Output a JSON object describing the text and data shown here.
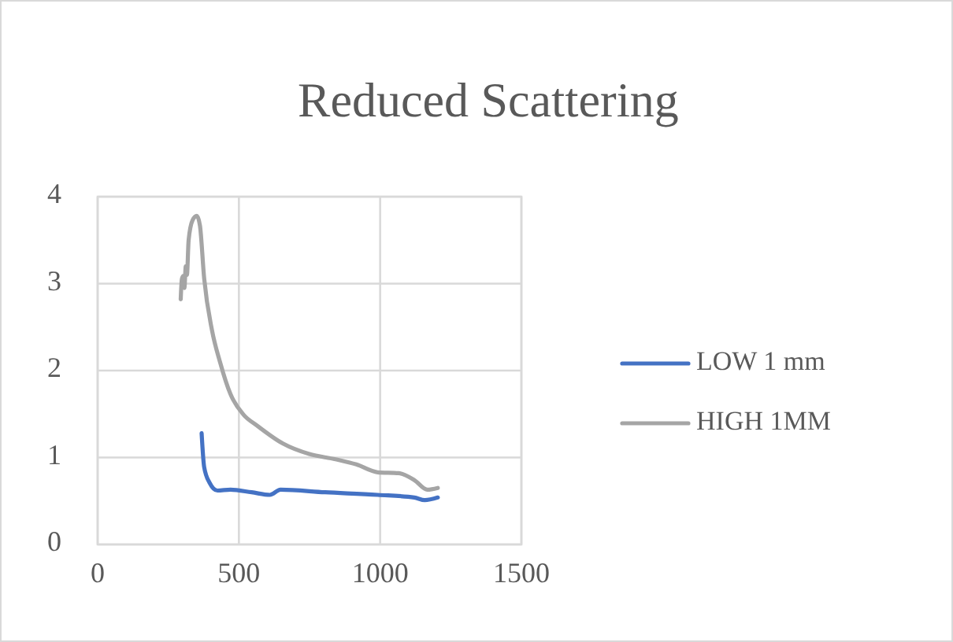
{
  "chart_data": {
    "type": "line",
    "title": "Reduced Scattering",
    "xlim": [
      0,
      1500
    ],
    "xticks": [
      0,
      500,
      1000,
      1500
    ],
    "ylim": [
      0,
      4
    ],
    "yticks": [
      0,
      1,
      2,
      3,
      4
    ],
    "grid": true,
    "legend": "right",
    "marker": "none",
    "line_style": "solid",
    "series": [
      {
        "name": "LOW 1 mm",
        "color": "#4472c4",
        "x": [
          368,
          377,
          396,
          424,
          470,
          545,
          610,
          647,
          805,
          991,
          1121,
          1158,
          1204
        ],
        "values": [
          1.28,
          0.89,
          0.71,
          0.62,
          0.63,
          0.6,
          0.57,
          0.63,
          0.6,
          0.57,
          0.54,
          0.51,
          0.54
        ]
      },
      {
        "name": "HIGH 1MM",
        "color": "#a5a5a5",
        "x": [
          294,
          298,
          303,
          307,
          312,
          316,
          322,
          336,
          351,
          362,
          377,
          405,
          433,
          470,
          517,
          563,
          656,
          749,
          842,
          916,
          991,
          1065,
          1121,
          1167,
          1204
        ],
        "values": [
          2.82,
          3.05,
          3.09,
          2.95,
          3.2,
          3.1,
          3.5,
          3.73,
          3.78,
          3.67,
          3.06,
          2.46,
          2.1,
          1.73,
          1.49,
          1.37,
          1.16,
          1.04,
          0.98,
          0.92,
          0.83,
          0.82,
          0.74,
          0.63,
          0.65
        ]
      }
    ]
  }
}
